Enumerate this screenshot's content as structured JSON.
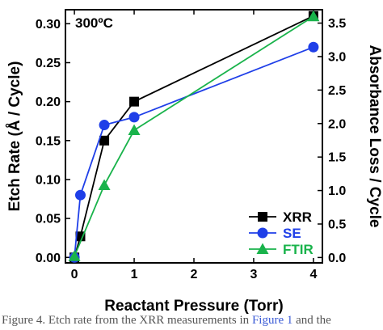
{
  "chart_data": {
    "type": "line",
    "annotation": "300ºC",
    "xlabel": "Reactant Pressure (Torr)",
    "ylabel": "Etch Rate (Å / Cycle)",
    "y2label": "Absorbance Loss / Cycle",
    "xlim": [
      -0.15,
      4.15
    ],
    "ylim": [
      -0.007,
      0.318
    ],
    "y2lim": [
      -0.08,
      3.7
    ],
    "xticks": [
      "0",
      "1",
      "2",
      "3",
      "4"
    ],
    "yticks": [
      "0.00",
      "0.05",
      "0.10",
      "0.15",
      "0.20",
      "0.25",
      "0.30"
    ],
    "y2ticks": [
      "0.0",
      "0.5",
      "1.0",
      "1.5",
      "2.0",
      "2.5",
      "3.0",
      "3.5"
    ],
    "grid": false,
    "legend_position": "bottom-right",
    "series": [
      {
        "name": "XRR",
        "axis": "left",
        "color": "#000000",
        "marker": "square",
        "x": [
          0,
          0.1,
          0.5,
          1,
          4
        ],
        "y": [
          0.0,
          0.027,
          0.15,
          0.2,
          0.31
        ]
      },
      {
        "name": "SE",
        "axis": "left",
        "color": "#1f3fe8",
        "marker": "circle",
        "x": [
          0,
          0.1,
          0.5,
          1,
          4
        ],
        "y": [
          0.0,
          0.08,
          0.17,
          0.18,
          0.27
        ]
      },
      {
        "name": "FTIR",
        "axis": "right",
        "color": "#19b34b",
        "marker": "triangle",
        "x": [
          0,
          0.5,
          1,
          4
        ],
        "y": [
          0.02,
          1.08,
          1.9,
          3.6
        ]
      }
    ]
  },
  "caption": {
    "prefix": "Figure 4. Etch rate from the XRR measurements in",
    "link": "Figure 1",
    "suffix": "and the"
  }
}
